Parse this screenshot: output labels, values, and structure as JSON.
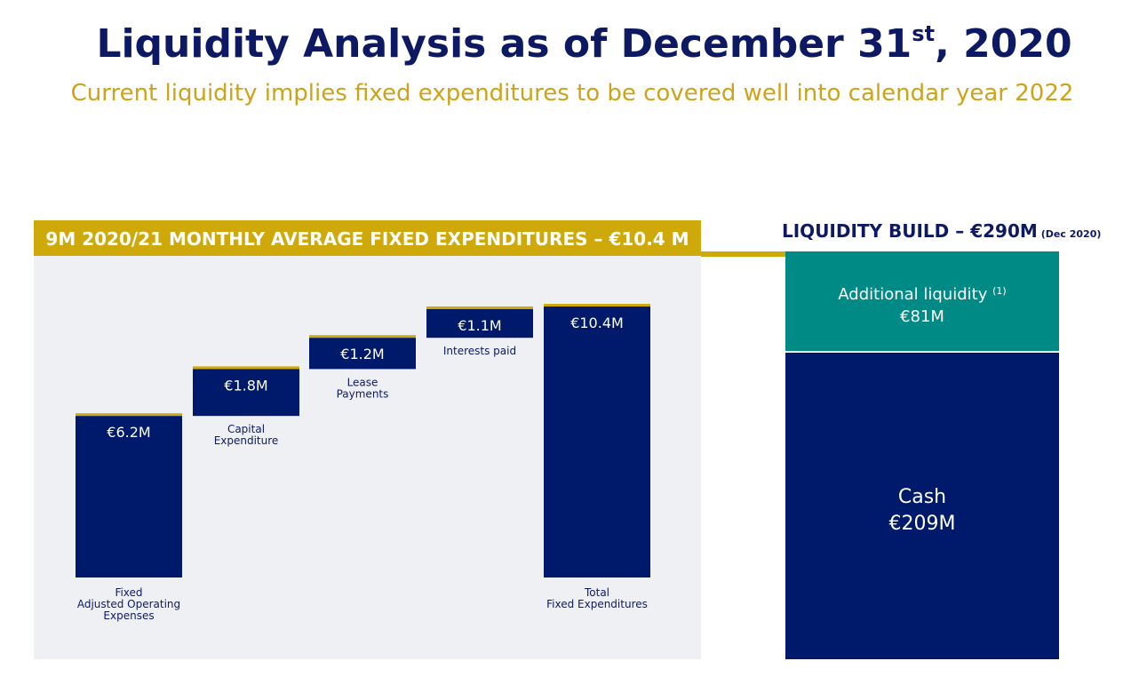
{
  "header": {
    "title_main": "Liquidity Analysis as of December 31",
    "title_sup": "st",
    "title_end": ", 2020",
    "subtitle": "Current liquidity implies fixed expenditures to be covered well into calendar year 2022"
  },
  "left_panel": {
    "banner": "9M 2020/21 MONTHLY AVERAGE FIXED EXPENDITURES – €10.4 M"
  },
  "right_panel": {
    "title": "LIQUIDITY BUILD – €290M",
    "title_note": "(Dec 2020)",
    "additional_label": "Additional liquidity",
    "additional_footnote": "(1)",
    "additional_value": "€81M",
    "cash_label": "Cash",
    "cash_value": "€209M"
  },
  "colors": {
    "navy": "#001a6b",
    "gold": "#cfa90a",
    "teal": "#008a85",
    "panel_bg": "#eef0f4"
  },
  "chart_data": [
    {
      "type": "bar",
      "subtype": "waterfall",
      "title": "9M 2020/21 MONTHLY AVERAGE FIXED EXPENDITURES – €10.4 M",
      "unit": "€M",
      "categories": [
        [
          "Fixed",
          "Adjusted Operating",
          "Expenses"
        ],
        [
          "Capital",
          "Expenditure"
        ],
        [
          "Lease",
          "Payments"
        ],
        [
          "Interests paid"
        ],
        [
          "Total",
          "Fixed Expenditures"
        ]
      ],
      "values": [
        6.2,
        1.8,
        1.2,
        1.1,
        10.4
      ],
      "value_labels": [
        "€6.2M",
        "€1.8M",
        "€1.2M",
        "€1.1M",
        "€10.4M"
      ],
      "is_total": [
        false,
        false,
        false,
        false,
        true
      ],
      "ylim": [
        0,
        10.4
      ],
      "grid": false
    },
    {
      "type": "bar",
      "subtype": "stacked",
      "title": "LIQUIDITY BUILD – €290M",
      "unit": "€M",
      "categories": [
        "Dec 2020"
      ],
      "series": [
        {
          "name": "Cash",
          "values": [
            209
          ]
        },
        {
          "name": "Additional liquidity",
          "values": [
            81
          ]
        }
      ]
    }
  ]
}
